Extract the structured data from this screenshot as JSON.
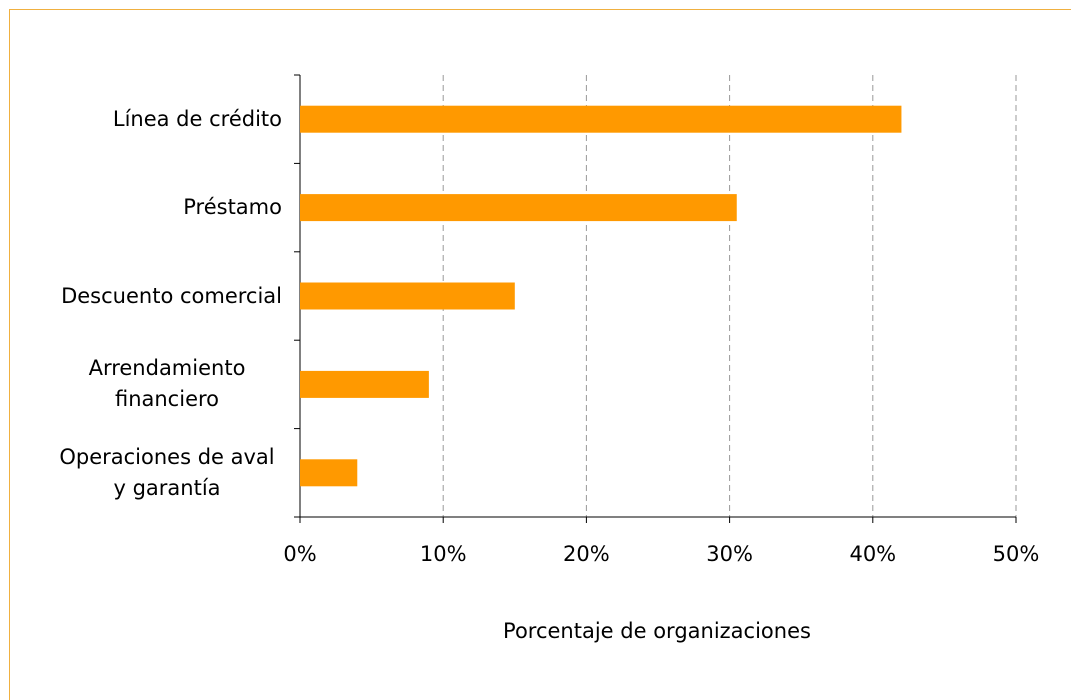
{
  "chart_data": {
    "type": "bar",
    "orientation": "horizontal",
    "categories": [
      "Línea de crédito",
      "Préstamo",
      "Descuento comercial",
      "Arrendamiento financiero",
      "Operaciones de aval y garantía"
    ],
    "values": [
      42,
      30.5,
      15,
      9,
      4
    ],
    "color": "#ff9900",
    "xlabel": "Porcentaje de organizaciones",
    "xlim": [
      0,
      50
    ],
    "xticks": [
      {
        "value": 0,
        "label": "0%"
      },
      {
        "value": 10,
        "label": "10%"
      },
      {
        "value": 20,
        "label": "20%"
      },
      {
        "value": 30,
        "label": "30%"
      },
      {
        "value": 40,
        "label": "40%"
      },
      {
        "value": 50,
        "label": "50%"
      }
    ],
    "grid": true
  }
}
